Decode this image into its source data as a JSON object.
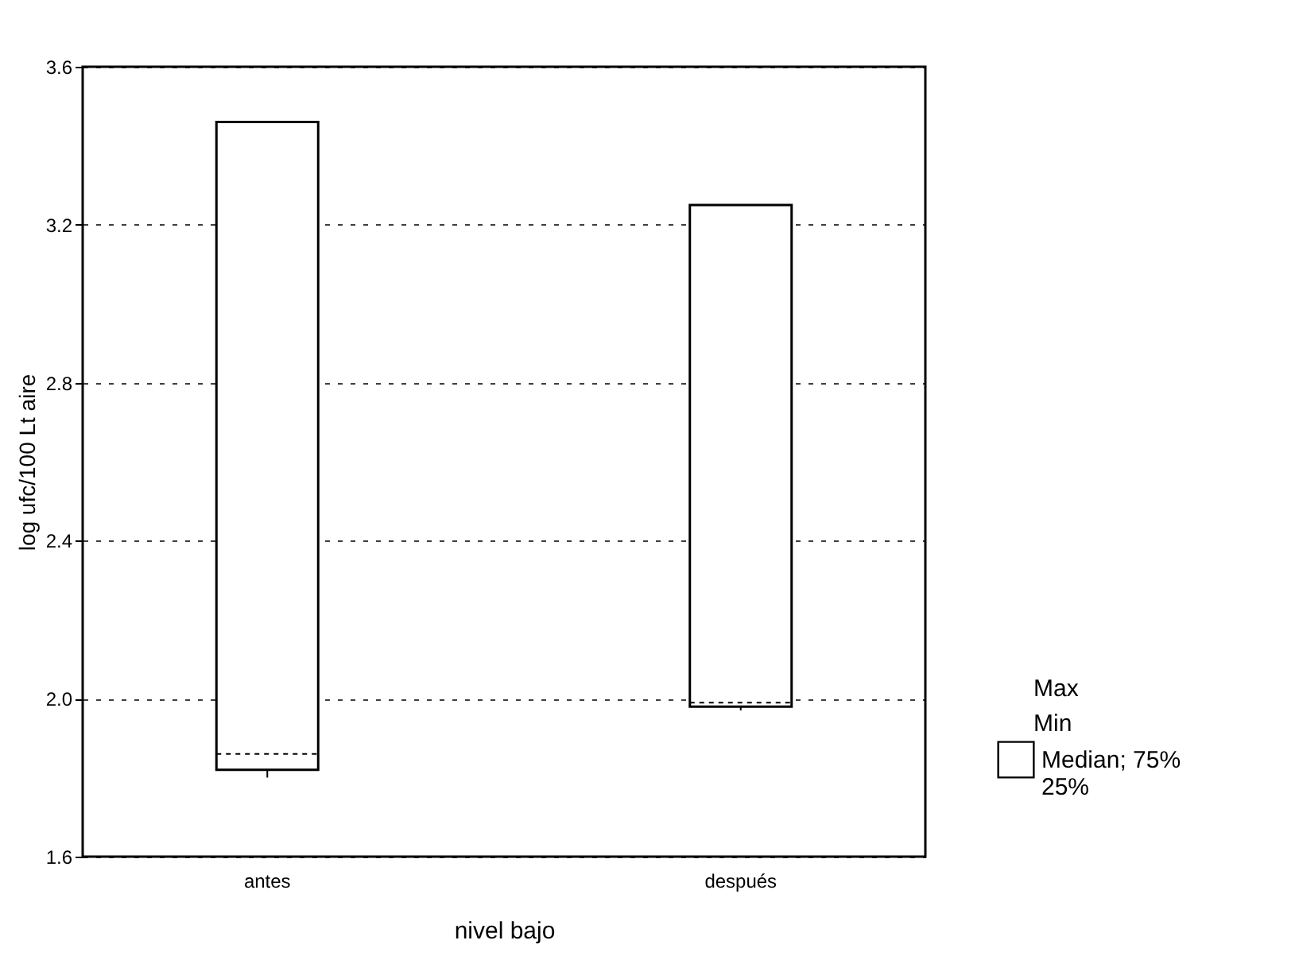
{
  "chart_data": {
    "type": "box",
    "xlabel": "nivel bajo",
    "ylabel": "log ufc/100 Lt aire",
    "categories": [
      "antes",
      "después"
    ],
    "series": [
      {
        "name": "Median; 75%\n25%",
        "color": "#ffffff",
        "boxes": [
          {
            "low": 1.8,
            "q1": 1.82,
            "median": 1.86,
            "q3": 3.46,
            "high": 3.46
          },
          {
            "low": 1.97,
            "q1": 1.98,
            "median": 1.99,
            "q3": 3.25,
            "high": 3.25
          }
        ]
      }
    ],
    "annotations": [
      "Max",
      "Min"
    ],
    "ylim": [
      1.6,
      3.6
    ],
    "yticks": [
      1.6,
      {
        "value": 2,
        "label": "2.0"
      },
      2.4,
      2.8,
      3.2,
      3.6
    ],
    "grid": "y",
    "legend": "right"
  }
}
